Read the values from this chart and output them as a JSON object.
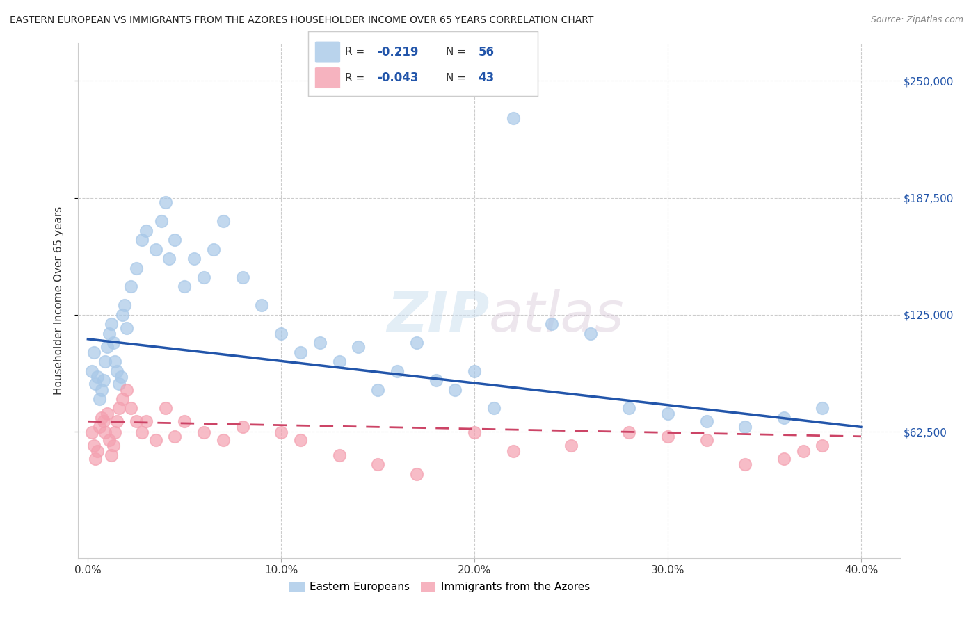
{
  "title": "EASTERN EUROPEAN VS IMMIGRANTS FROM THE AZORES HOUSEHOLDER INCOME OVER 65 YEARS CORRELATION CHART",
  "source": "Source: ZipAtlas.com",
  "xlabel_ticks": [
    "0.0%",
    "10.0%",
    "20.0%",
    "30.0%",
    "40.0%"
  ],
  "xlabel_tick_vals": [
    0.0,
    0.1,
    0.2,
    0.3,
    0.4
  ],
  "ylabel": "Householder Income Over 65 years",
  "ylabel_ticks": [
    "$62,500",
    "$125,000",
    "$187,500",
    "$250,000"
  ],
  "ylabel_tick_vals": [
    62500,
    125000,
    187500,
    250000
  ],
  "ylim": [
    -5000,
    270000
  ],
  "xlim": [
    -0.005,
    0.42
  ],
  "watermark_zip": "ZIP",
  "watermark_atlas": "atlas",
  "legend_label1": "Eastern Europeans",
  "legend_label2": "Immigrants from the Azores",
  "r1": "-0.219",
  "n1": "56",
  "r2": "-0.043",
  "n2": "43",
  "blue_color": "#a8c8e8",
  "pink_color": "#f4a0b0",
  "line_blue": "#2255aa",
  "line_pink": "#cc4466",
  "blue_x": [
    0.002,
    0.003,
    0.004,
    0.005,
    0.006,
    0.007,
    0.008,
    0.009,
    0.01,
    0.011,
    0.012,
    0.013,
    0.014,
    0.015,
    0.016,
    0.017,
    0.018,
    0.019,
    0.02,
    0.022,
    0.025,
    0.028,
    0.03,
    0.035,
    0.038,
    0.04,
    0.042,
    0.045,
    0.05,
    0.055,
    0.06,
    0.065,
    0.07,
    0.08,
    0.09,
    0.1,
    0.11,
    0.12,
    0.13,
    0.14,
    0.15,
    0.16,
    0.17,
    0.18,
    0.19,
    0.2,
    0.21,
    0.22,
    0.24,
    0.26,
    0.28,
    0.3,
    0.32,
    0.34,
    0.36,
    0.38
  ],
  "blue_y": [
    95000,
    105000,
    88000,
    92000,
    80000,
    85000,
    90000,
    100000,
    108000,
    115000,
    120000,
    110000,
    100000,
    95000,
    88000,
    92000,
    125000,
    130000,
    118000,
    140000,
    150000,
    165000,
    170000,
    160000,
    175000,
    185000,
    155000,
    165000,
    140000,
    155000,
    145000,
    160000,
    175000,
    145000,
    130000,
    115000,
    105000,
    110000,
    100000,
    108000,
    85000,
    95000,
    110000,
    90000,
    85000,
    95000,
    75000,
    230000,
    120000,
    115000,
    75000,
    72000,
    68000,
    65000,
    70000,
    75000
  ],
  "pink_x": [
    0.002,
    0.003,
    0.004,
    0.005,
    0.006,
    0.007,
    0.008,
    0.009,
    0.01,
    0.011,
    0.012,
    0.013,
    0.014,
    0.015,
    0.016,
    0.018,
    0.02,
    0.022,
    0.025,
    0.028,
    0.03,
    0.035,
    0.04,
    0.045,
    0.05,
    0.06,
    0.07,
    0.08,
    0.1,
    0.11,
    0.13,
    0.15,
    0.17,
    0.2,
    0.22,
    0.25,
    0.28,
    0.3,
    0.32,
    0.34,
    0.36,
    0.37,
    0.38
  ],
  "pink_y": [
    62000,
    55000,
    48000,
    52000,
    65000,
    70000,
    68000,
    62000,
    72000,
    58000,
    50000,
    55000,
    62000,
    68000,
    75000,
    80000,
    85000,
    75000,
    68000,
    62000,
    68000,
    58000,
    75000,
    60000,
    68000,
    62000,
    58000,
    65000,
    62000,
    58000,
    50000,
    45000,
    40000,
    62000,
    52000,
    55000,
    62000,
    60000,
    58000,
    45000,
    48000,
    52000,
    55000
  ]
}
